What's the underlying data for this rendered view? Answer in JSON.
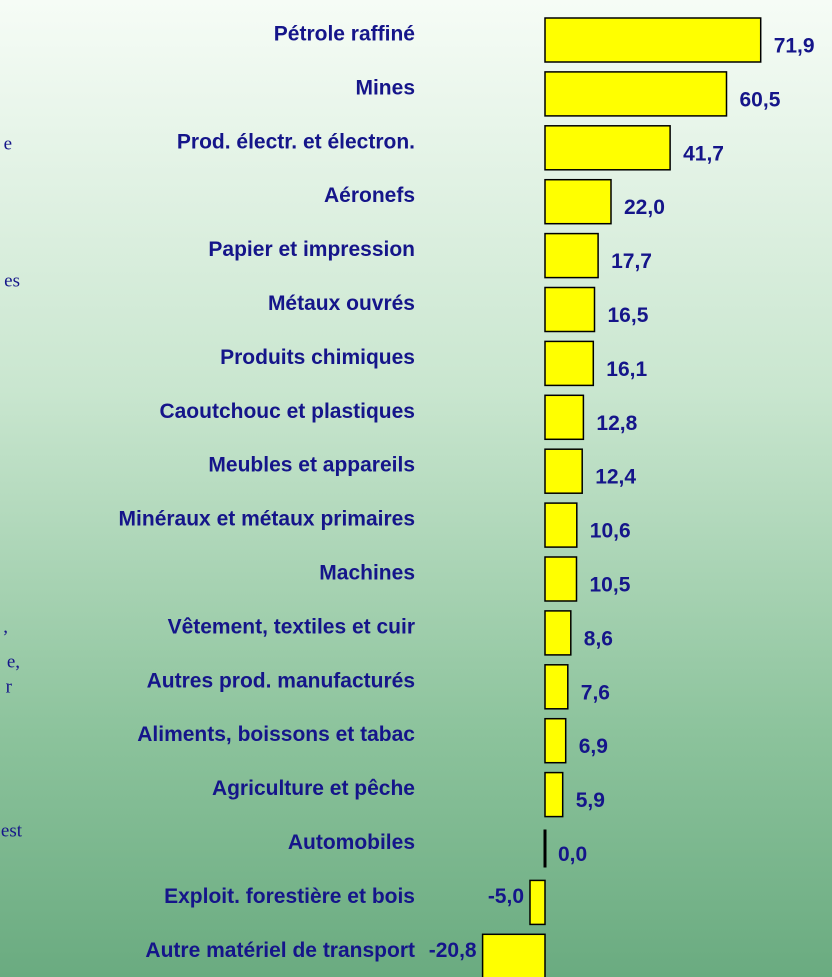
{
  "chart_data": {
    "type": "bar",
    "orientation": "horizontal",
    "categories": [
      "Pétrole raffiné",
      "Mines",
      "Prod. électr. et électron.",
      "Aéronefs",
      "Papier et impression",
      "Métaux ouvrés",
      "Produits chimiques",
      "Caoutchouc et plastiques",
      "Meubles et appareils",
      "Minéraux et métaux primaires",
      "Machines",
      "Vêtement, textiles et cuir",
      "Autres prod. manufacturés",
      "Aliments, boissons et tabac",
      "Agriculture et pêche",
      "Automobiles",
      "Exploit. forestière et bois",
      "Autre matériel de transport"
    ],
    "values": [
      71.9,
      60.5,
      41.7,
      22.0,
      17.7,
      16.5,
      16.1,
      12.8,
      12.4,
      10.6,
      10.5,
      8.6,
      7.6,
      6.9,
      5.9,
      0.0,
      -5.0,
      -20.8
    ],
    "value_labels": [
      "71,9",
      "60,5",
      "41,7",
      "22,0",
      "17,7",
      "16,5",
      "16,1",
      "12,8",
      "12,4",
      "10,6",
      "10,5",
      "8,6",
      "7,6",
      "6,9",
      "5,9",
      "0,0",
      "-5,0",
      "-20,8"
    ],
    "color": "#ffff00"
  },
  "side_fragments": [
    "e",
    "es",
    ",",
    "e,",
    "r",
    "est"
  ]
}
